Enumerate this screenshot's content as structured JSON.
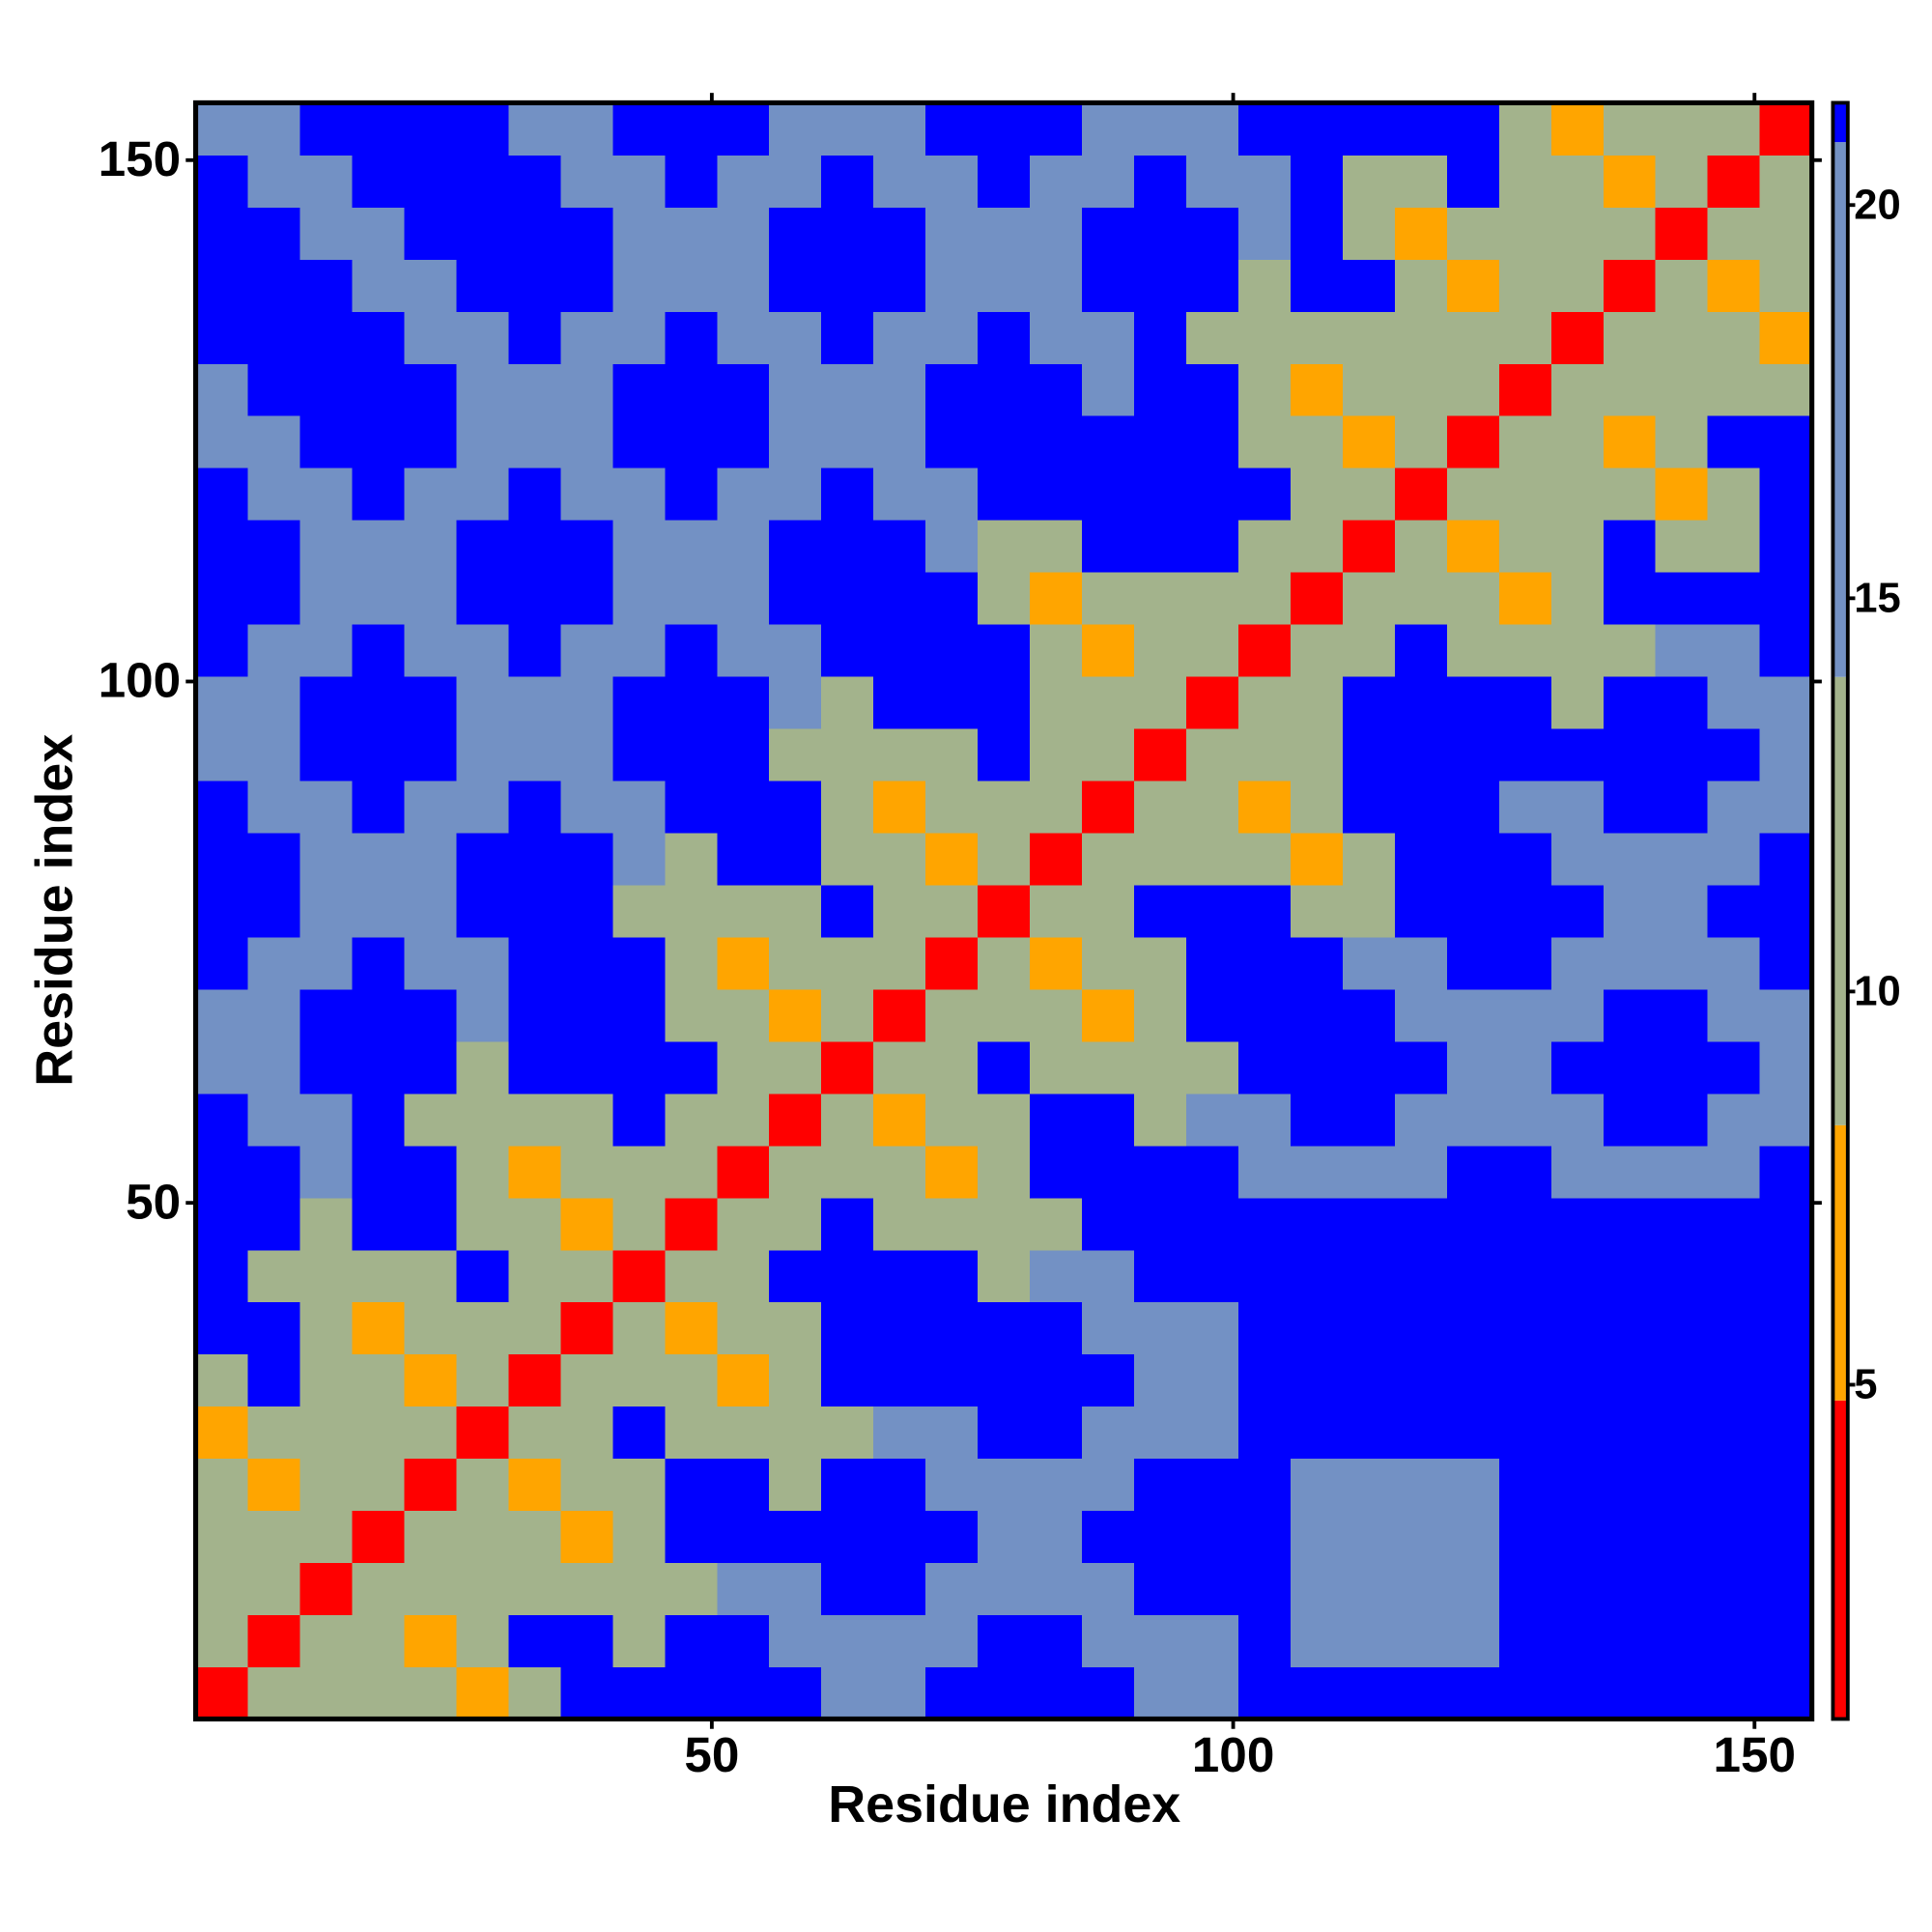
{
  "chart_data": {
    "type": "heatmap",
    "xlabel": "Residue index",
    "ylabel": "Residue index",
    "xlim": [
      0.5,
      155.5
    ],
    "ylim": [
      0.5,
      155.5
    ],
    "xticks": [
      50,
      100,
      150
    ],
    "yticks": [
      50,
      100,
      150
    ],
    "xbins": [
      0.5,
      5.5,
      10.5,
      15.5,
      20.5,
      25.5,
      30.5,
      35.5,
      40.5,
      45.5,
      50.5,
      55.5,
      60.5,
      65.5,
      70.5,
      75.5,
      80.5,
      85.5,
      90.5,
      95.5,
      100.5,
      105.5,
      110.5,
      115.5,
      120.5,
      125.5,
      130.5,
      135.5,
      140.5,
      145.5,
      150.5,
      155.5
    ],
    "ybins": [
      0.5,
      5.5,
      10.5,
      15.5,
      20.5,
      25.5,
      30.5,
      35.5,
      40.5,
      45.5,
      50.5,
      55.5,
      60.5,
      65.5,
      70.5,
      75.5,
      80.5,
      85.5,
      90.5,
      95.5,
      100.5,
      105.5,
      110.5,
      115.5,
      120.5,
      125.5,
      130.5,
      135.5,
      140.5,
      145.5,
      150.5,
      155.5
    ],
    "values": [
      [
        2,
        9,
        12,
        12,
        12,
        5,
        12,
        21,
        21,
        21,
        21,
        21,
        15,
        15,
        21,
        21,
        21,
        21,
        15,
        15,
        21,
        21,
        21,
        21,
        21,
        21,
        21,
        21,
        21,
        21,
        21
      ],
      [
        9,
        2,
        9,
        12,
        5,
        12,
        21,
        21,
        12,
        21,
        21,
        15,
        15,
        15,
        15,
        21,
        21,
        15,
        15,
        15,
        21,
        16,
        16,
        16,
        16,
        21,
        21,
        21,
        21,
        21,
        21
      ],
      [
        12,
        9,
        2,
        9,
        12,
        12,
        12,
        12,
        12,
        12,
        15,
        15,
        21,
        21,
        15,
        15,
        15,
        15,
        21,
        21,
        21,
        16,
        16,
        16,
        16,
        21,
        21,
        21,
        21,
        21,
        21
      ],
      [
        12,
        12,
        9,
        2,
        9,
        12,
        12,
        5,
        12,
        21,
        21,
        21,
        21,
        21,
        21,
        15,
        15,
        21,
        21,
        21,
        21,
        16,
        16,
        16,
        16,
        21,
        21,
        21,
        21,
        21,
        21
      ],
      [
        12,
        5,
        12,
        9,
        2,
        9,
        5,
        12,
        12,
        21,
        21,
        12,
        21,
        21,
        15,
        15,
        15,
        15,
        21,
        21,
        21,
        16,
        16,
        16,
        16,
        21,
        21,
        21,
        21,
        21,
        21
      ],
      [
        5,
        12,
        12,
        12,
        9,
        2,
        9,
        12,
        21,
        12,
        12,
        12,
        12,
        15,
        15,
        21,
        21,
        15,
        15,
        15,
        21,
        21,
        21,
        21,
        21,
        21,
        21,
        21,
        21,
        21,
        21
      ],
      [
        12,
        21,
        12,
        12,
        5,
        9,
        2,
        9,
        12,
        12,
        5,
        12,
        21,
        21,
        21,
        21,
        21,
        21,
        15,
        15,
        21,
        21,
        21,
        21,
        21,
        21,
        21,
        21,
        21,
        21,
        21
      ],
      [
        21,
        21,
        12,
        5,
        12,
        12,
        9,
        2,
        9,
        5,
        12,
        12,
        21,
        21,
        21,
        21,
        21,
        15,
        15,
        15,
        21,
        21,
        21,
        21,
        21,
        21,
        21,
        21,
        21,
        21,
        21
      ],
      [
        21,
        12,
        12,
        12,
        12,
        21,
        12,
        9,
        2,
        9,
        12,
        21,
        21,
        21,
        21,
        12,
        15,
        15,
        21,
        21,
        21,
        21,
        21,
        21,
        21,
        21,
        21,
        21,
        21,
        21,
        21
      ],
      [
        21,
        21,
        12,
        21,
        21,
        12,
        12,
        5,
        9,
        2,
        9,
        12,
        21,
        12,
        12,
        12,
        12,
        21,
        21,
        21,
        21,
        21,
        21,
        21,
        21,
        21,
        21,
        21,
        21,
        21,
        21
      ],
      [
        21,
        21,
        15,
        21,
        21,
        12,
        5,
        12,
        12,
        9,
        2,
        9,
        12,
        12,
        5,
        12,
        21,
        21,
        21,
        21,
        15,
        15,
        15,
        15,
        21,
        21,
        15,
        15,
        15,
        15,
        21
      ],
      [
        21,
        15,
        15,
        21,
        12,
        12,
        12,
        12,
        21,
        12,
        9,
        2,
        9,
        5,
        12,
        12,
        21,
        21,
        12,
        15,
        15,
        21,
        21,
        15,
        15,
        15,
        15,
        21,
        21,
        15,
        15
      ],
      [
        15,
        15,
        21,
        21,
        21,
        12,
        21,
        21,
        21,
        21,
        12,
        9,
        2,
        9,
        12,
        21,
        12,
        12,
        12,
        12,
        21,
        21,
        21,
        21,
        15,
        15,
        21,
        21,
        21,
        21,
        15
      ],
      [
        15,
        15,
        21,
        21,
        21,
        15,
        21,
        21,
        21,
        12,
        12,
        5,
        9,
        2,
        9,
        12,
        12,
        5,
        12,
        21,
        21,
        21,
        21,
        15,
        15,
        15,
        15,
        21,
        21,
        15,
        15
      ],
      [
        21,
        15,
        15,
        21,
        15,
        15,
        21,
        21,
        21,
        12,
        5,
        12,
        12,
        9,
        2,
        9,
        5,
        12,
        12,
        21,
        21,
        21,
        15,
        15,
        21,
        21,
        15,
        15,
        15,
        15,
        21
      ],
      [
        21,
        21,
        15,
        15,
        15,
        21,
        21,
        21,
        12,
        12,
        12,
        12,
        21,
        12,
        9,
        2,
        9,
        12,
        21,
        21,
        21,
        12,
        12,
        21,
        21,
        21,
        21,
        15,
        15,
        21,
        21
      ],
      [
        21,
        21,
        15,
        15,
        15,
        21,
        21,
        21,
        15,
        12,
        21,
        21,
        12,
        12,
        5,
        9,
        2,
        9,
        12,
        12,
        12,
        5,
        12,
        21,
        21,
        21,
        15,
        15,
        15,
        15,
        21
      ],
      [
        21,
        15,
        15,
        21,
        15,
        15,
        21,
        15,
        15,
        21,
        21,
        21,
        12,
        5,
        12,
        12,
        9,
        2,
        9,
        12,
        5,
        12,
        21,
        21,
        21,
        15,
        15,
        21,
        21,
        15,
        15
      ],
      [
        15,
        15,
        21,
        21,
        21,
        15,
        15,
        15,
        21,
        21,
        21,
        12,
        12,
        12,
        12,
        21,
        12,
        9,
        2,
        9,
        12,
        12,
        21,
        21,
        21,
        21,
        21,
        21,
        21,
        21,
        15
      ],
      [
        15,
        15,
        21,
        21,
        21,
        15,
        15,
        15,
        21,
        21,
        21,
        15,
        12,
        21,
        21,
        21,
        12,
        12,
        9,
        2,
        9,
        12,
        21,
        21,
        21,
        21,
        12,
        21,
        21,
        15,
        15
      ],
      [
        21,
        15,
        15,
        21,
        15,
        15,
        21,
        15,
        15,
        21,
        15,
        15,
        21,
        21,
        21,
        21,
        12,
        5,
        12,
        9,
        2,
        9,
        12,
        21,
        12,
        12,
        12,
        12,
        15,
        15,
        21
      ],
      [
        21,
        21,
        15,
        15,
        15,
        21,
        21,
        21,
        15,
        15,
        15,
        21,
        21,
        21,
        21,
        12,
        5,
        12,
        12,
        12,
        9,
        2,
        9,
        12,
        12,
        5,
        12,
        21,
        21,
        21,
        21
      ],
      [
        21,
        21,
        15,
        15,
        15,
        21,
        21,
        21,
        15,
        15,
        15,
        21,
        21,
        21,
        15,
        12,
        12,
        21,
        21,
        21,
        12,
        9,
        2,
        9,
        5,
        12,
        12,
        21,
        12,
        12,
        21
      ],
      [
        21,
        16,
        16,
        21,
        15,
        15,
        21,
        15,
        15,
        21,
        15,
        15,
        21,
        15,
        15,
        21,
        21,
        21,
        21,
        21,
        21,
        12,
        9,
        2,
        9,
        12,
        12,
        12,
        5,
        12,
        21
      ],
      [
        16,
        16,
        21,
        21,
        21,
        15,
        15,
        15,
        21,
        21,
        21,
        15,
        15,
        15,
        21,
        21,
        21,
        21,
        21,
        21,
        12,
        12,
        5,
        9,
        2,
        9,
        12,
        5,
        12,
        21,
        21
      ],
      [
        16,
        21,
        21,
        21,
        21,
        15,
        15,
        15,
        21,
        21,
        21,
        15,
        15,
        15,
        21,
        21,
        21,
        15,
        21,
        21,
        12,
        5,
        12,
        12,
        9,
        2,
        9,
        12,
        12,
        12,
        12
      ],
      [
        21,
        21,
        21,
        21,
        16,
        16,
        21,
        15,
        15,
        21,
        15,
        15,
        21,
        15,
        15,
        21,
        15,
        15,
        21,
        12,
        12,
        12,
        12,
        12,
        12,
        9,
        2,
        9,
        12,
        12,
        5
      ],
      [
        21,
        21,
        21,
        16,
        16,
        21,
        21,
        21,
        15,
        15,
        15,
        21,
        21,
        21,
        15,
        15,
        15,
        21,
        21,
        21,
        12,
        21,
        21,
        12,
        5,
        12,
        9,
        2,
        9,
        5,
        12
      ],
      [
        21,
        21,
        16,
        16,
        21,
        21,
        21,
        21,
        15,
        15,
        15,
        21,
        21,
        21,
        15,
        15,
        15,
        21,
        21,
        21,
        15,
        21,
        12,
        5,
        12,
        12,
        12,
        9,
        2,
        9,
        12
      ],
      [
        21,
        16,
        16,
        21,
        21,
        21,
        21,
        16,
        16,
        21,
        15,
        15,
        21,
        15,
        15,
        21,
        15,
        15,
        21,
        15,
        15,
        21,
        12,
        12,
        21,
        12,
        12,
        5,
        9,
        2,
        9
      ],
      [
        16,
        16,
        21,
        21,
        21,
        21,
        16,
        16,
        21,
        21,
        21,
        15,
        15,
        15,
        21,
        21,
        21,
        15,
        15,
        15,
        21,
        21,
        21,
        21,
        21,
        12,
        5,
        12,
        12,
        9,
        2
      ]
    ],
    "clim": [
      0.75,
      21.3
    ],
    "cticks": [
      5,
      10,
      15,
      20
    ],
    "colormap": [
      {
        "to": 4.8,
        "color": "#ff0000"
      },
      {
        "to": 8.3,
        "color": "#ffa500"
      },
      {
        "to": 14,
        "color": "#a3b38c"
      },
      {
        "to": 20.8,
        "color": "#7391c4"
      },
      {
        "to": 21.3,
        "color": "#0000ff"
      }
    ]
  }
}
